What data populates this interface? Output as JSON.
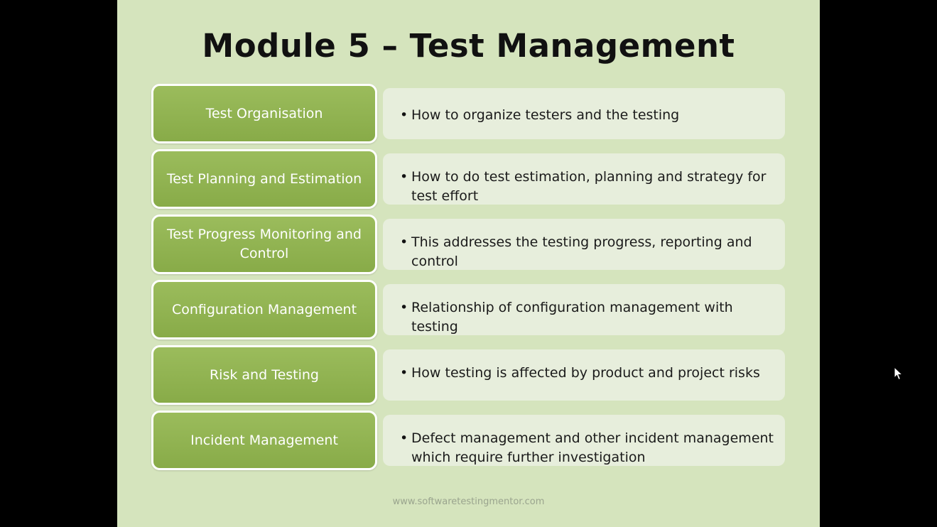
{
  "slide": {
    "title": "Module 5 – Test Management",
    "rows": [
      {
        "heading": "Test Organisation",
        "description": "How to organize testers and the testing"
      },
      {
        "heading": "Test Planning and Estimation",
        "description": "How to do test estimation,  planning and strategy for test effort"
      },
      {
        "heading": "Test Progress Monitoring and Control",
        "description": "This addresses the testing progress, reporting and control"
      },
      {
        "heading": "Configuration Management",
        "description": "Relationship of configuration management with testing"
      },
      {
        "heading": "Risk and Testing",
        "description": "How testing is affected by product and project risks"
      },
      {
        "heading": "Incident Management",
        "description": "Defect management and other incident management which require further investigation"
      }
    ],
    "watermark": "www.softwaretestingmentor.com"
  },
  "colors": {
    "slide_background": "#d5e4bd",
    "box_green": "#92b452",
    "page_background": "#000000"
  },
  "icons": {
    "cursor": "mouse-pointer-icon"
  }
}
